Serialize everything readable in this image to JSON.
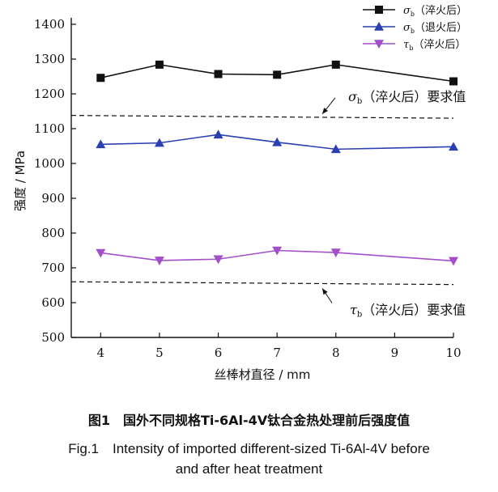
{
  "chart_data": {
    "type": "line",
    "title": "",
    "x": [
      4,
      5,
      6,
      7,
      8,
      10
    ],
    "xticks": [
      "4",
      "5",
      "6",
      "7",
      "8",
      "9",
      "10"
    ],
    "xlim": [
      3.5,
      10
    ],
    "yticks": [
      "500",
      "600",
      "700",
      "800",
      "900",
      "1000",
      "1100",
      "1200",
      "1300",
      "1400"
    ],
    "ylim": [
      500,
      1400
    ],
    "xlabel": "丝棒材直径 / mm",
    "ylabel": "强度 / MPa",
    "grid": false,
    "legend_position": "top-right",
    "series": [
      {
        "name": "σb（淬火后）",
        "legend_main": "σ",
        "legend_sub": "b",
        "legend_rest": "（淬火后）",
        "marker": "square",
        "color": "#111111",
        "values": [
          1246,
          1284,
          1257,
          1255,
          1284,
          1236
        ]
      },
      {
        "name": "σb（退火后）",
        "legend_main": "σ",
        "legend_sub": "b",
        "legend_rest": "（退火后）",
        "marker": "triangle-up",
        "color": "#2a3fb0",
        "values": [
          1055,
          1059,
          1083,
          1061,
          1041,
          1048
        ]
      },
      {
        "name": "τb（淬火后）",
        "legend_main": "τ",
        "legend_sub": "b",
        "legend_rest": "（淬火后）",
        "marker": "triangle-down",
        "color": "#a24fc8",
        "values": [
          743,
          721,
          725,
          750,
          744,
          720
        ]
      }
    ],
    "reference_lines": [
      {
        "label": "σb（淬火后）要求值",
        "main": "σ",
        "sub": "b",
        "rest": "（淬火后）要求值",
        "values": [
          1138,
          1130
        ]
      },
      {
        "label": "τb（淬火后）要求值",
        "main": "τ",
        "sub": "b",
        "rest": "（淬火后）要求值",
        "values": [
          660,
          652
        ]
      }
    ]
  },
  "caption": {
    "cn": "图1　国外不同规格Ti-6Al-4V钛合金热处理前后强度值",
    "en_line1": "Fig.1　Intensity of imported different-sized Ti-6Al-4V before",
    "en_line2": "and after heat treatment"
  }
}
